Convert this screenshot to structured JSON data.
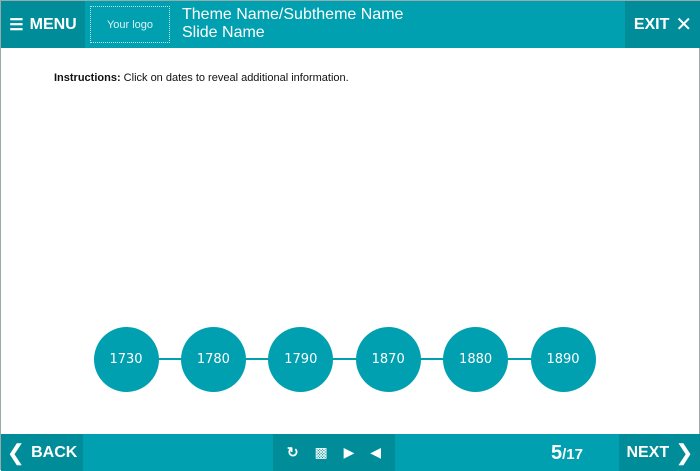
{
  "header": {
    "menu_label": "MENU",
    "logo_text": "Your logo",
    "theme_title": "Theme Name/Subtheme Name",
    "slide_name": "Slide Name",
    "exit_label": "EXIT"
  },
  "instructions": {
    "label": "Instructions:",
    "text": " Click on dates to reveal additional information."
  },
  "timeline": {
    "dates": [
      "1730",
      "1780",
      "1790",
      "1870",
      "1880",
      "1890"
    ]
  },
  "footer": {
    "back_label": "BACK",
    "next_label": "NEXT",
    "page_current": "5",
    "page_total": "/17"
  },
  "colors": {
    "accent": "#00a0b0",
    "accent_dark": "#008d99"
  }
}
